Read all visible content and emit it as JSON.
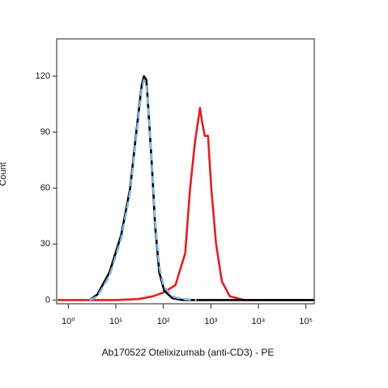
{
  "chart_data": {
    "type": "line",
    "xlabel": "Ab170522 Otelixizumab (anti-CD3) - PE",
    "ylabel": "Count",
    "xscale": "log",
    "xlim": [
      0.57,
      150000
    ],
    "ylim": [
      -2,
      140
    ],
    "xticks": [
      {
        "value": 1,
        "label": "10⁰"
      },
      {
        "value": 10,
        "label": "10¹"
      },
      {
        "value": 100,
        "label": "10²"
      },
      {
        "value": 1000,
        "label": "10³"
      },
      {
        "value": 10000,
        "label": "10⁴"
      },
      {
        "value": 100000,
        "label": "10⁵"
      }
    ],
    "yticks": [
      0,
      30,
      60,
      90,
      120
    ],
    "series": [
      {
        "name": null,
        "color": "#e02020",
        "dash": false,
        "x": [
          0.6,
          10,
          30,
          60,
          100,
          180,
          288,
          365,
          465,
          545,
          590,
          660,
          745,
          870,
          1020,
          1290,
          1700,
          2500,
          5000,
          150000
        ],
        "values": [
          0,
          0,
          0.5,
          2,
          4,
          8,
          25,
          60,
          85,
          97,
          103,
          95,
          88,
          88,
          60,
          30,
          10,
          2,
          0,
          0
        ]
      },
      {
        "name": null,
        "color": "#000000",
        "dash": false,
        "x": [
          2.8,
          4.1,
          7.4,
          13,
          20,
          27,
          35,
          39,
          44,
          49,
          58,
          67,
          82,
          104,
          155,
          250,
          150000
        ],
        "values": [
          0,
          3,
          15,
          35,
          60,
          90,
          115,
          120,
          118,
          100,
          70,
          40,
          15,
          5,
          1,
          0,
          0
        ]
      },
      {
        "name": null,
        "color": "#7fb8e8",
        "dash": true,
        "x": [
          2.8,
          4.1,
          7.4,
          13,
          20,
          27,
          35,
          39,
          44,
          49,
          58,
          67,
          82,
          100,
          150,
          250,
          500
        ],
        "values": [
          0,
          2,
          13,
          33,
          58,
          88,
          113,
          118,
          116,
          100,
          72,
          42,
          18,
          8,
          2,
          0.5,
          0
        ]
      }
    ]
  }
}
